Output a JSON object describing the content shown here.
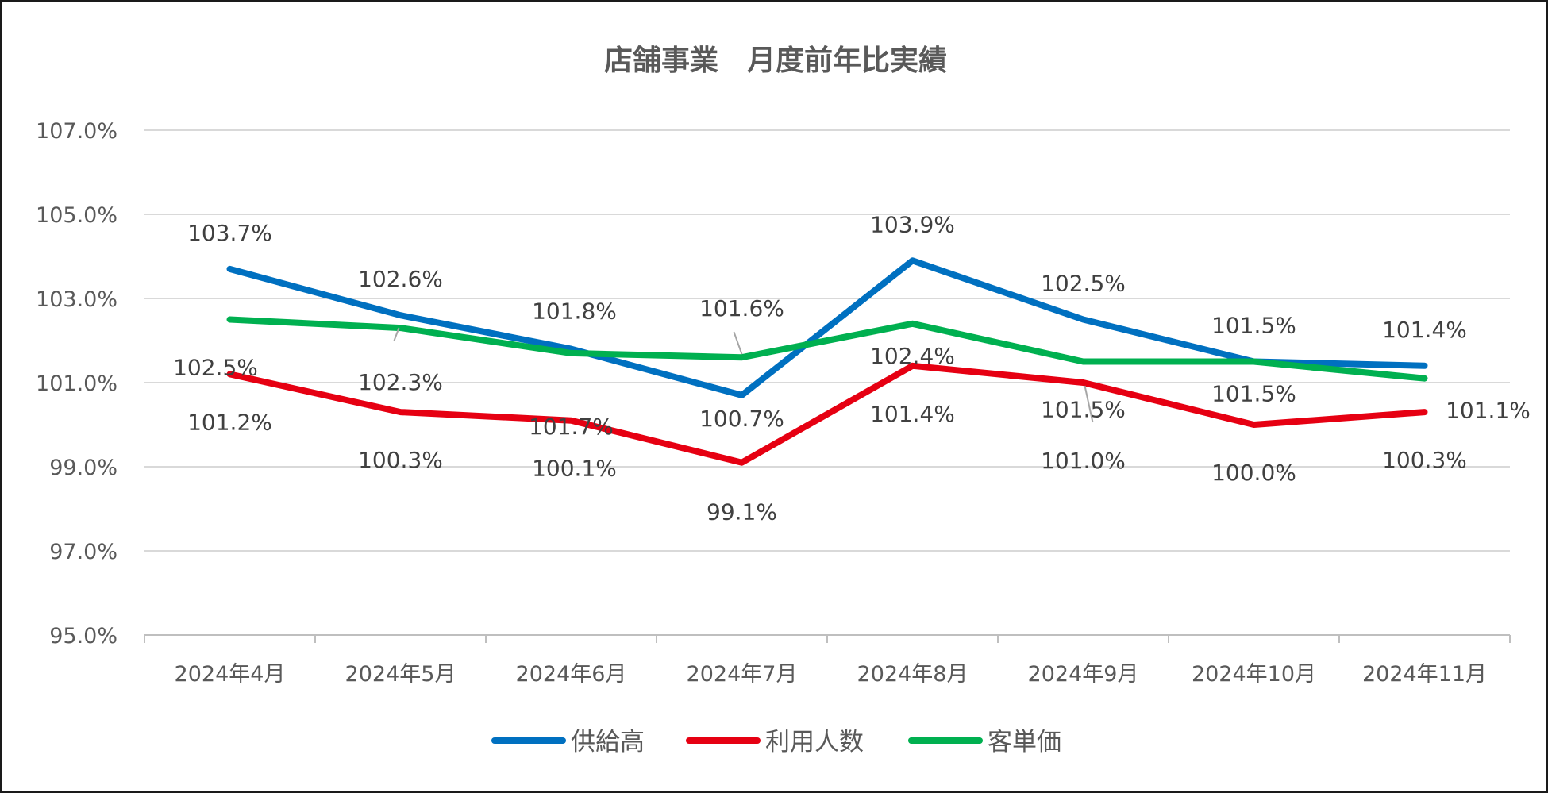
{
  "chart_data": {
    "type": "line",
    "title": "店舗事業　月度前年比実績",
    "categories": [
      "2024年4月",
      "2024年5月",
      "2024年6月",
      "2024年7月",
      "2024年8月",
      "2024年9月",
      "2024年10月",
      "2024年11月"
    ],
    "ylim": [
      95.0,
      107.0
    ],
    "yticks": [
      "95.0%",
      "97.0%",
      "99.0%",
      "101.0%",
      "103.0%",
      "105.0%",
      "107.0%"
    ],
    "grid": true,
    "legend_position": "bottom",
    "series": [
      {
        "name": "供給高",
        "color": "#0070c0",
        "values": [
          103.7,
          102.6,
          101.8,
          100.7,
          103.9,
          102.5,
          101.5,
          101.4
        ],
        "labels": [
          "103.7%",
          "102.6%",
          "101.8%",
          "100.7%",
          "103.9%",
          "102.5%",
          "101.5%",
          "101.4%"
        ]
      },
      {
        "name": "利用人数",
        "color": "#e60012",
        "values": [
          101.2,
          100.3,
          100.1,
          99.1,
          101.4,
          101.0,
          100.0,
          100.3
        ],
        "labels": [
          "101.2%",
          "100.3%",
          "100.1%",
          "99.1%",
          "101.4%",
          "101.0%",
          "100.0%",
          "100.3%"
        ]
      },
      {
        "name": "客単価",
        "color": "#00b050",
        "values": [
          102.5,
          102.3,
          101.7,
          101.6,
          102.4,
          101.5,
          101.5,
          101.1
        ],
        "labels": [
          "102.5%",
          "102.3%",
          "101.7%",
          "101.6%",
          "102.4%",
          "101.5%",
          "101.5%",
          "101.1%"
        ]
      }
    ]
  }
}
